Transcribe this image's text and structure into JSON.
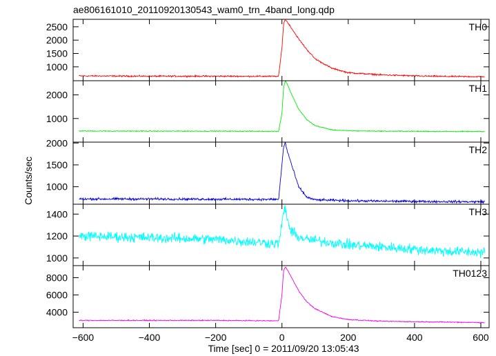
{
  "title": "ae806161010_20110920130543_wam0_trn_4band_long.qdp",
  "xlabel": "Time [sec] 0 = 2011/09/20 13:05:43",
  "ylabel": "Counts/sec",
  "chart_data": [
    {
      "type": "line",
      "panel": "TH0",
      "label": "TH0",
      "color": "#ff0000",
      "xlim": [
        -630,
        625
      ],
      "ylim": [
        480,
        2780
      ],
      "yticks": [
        1000,
        1500,
        2000,
        2500
      ],
      "baseline_before": 660,
      "baseline_after": 620,
      "noise": 22,
      "x": [
        -600,
        -400,
        -200,
        -10,
        0,
        5,
        10,
        15,
        25,
        50,
        75,
        100,
        150,
        200,
        300,
        400,
        500,
        610
      ],
      "y": [
        660,
        650,
        650,
        645,
        1700,
        2600,
        2780,
        2700,
        2520,
        2050,
        1650,
        1300,
        950,
        780,
        700,
        660,
        640,
        630
      ]
    },
    {
      "type": "line",
      "panel": "TH1",
      "label": "TH1",
      "color": "#00ee00",
      "xlim": [
        -630,
        625
      ],
      "ylim": [
        0,
        2600
      ],
      "yticks": [
        1000,
        2000
      ],
      "baseline_before": 470,
      "baseline_after": 450,
      "noise": 15,
      "x": [
        -600,
        -400,
        -200,
        -10,
        0,
        5,
        10,
        15,
        25,
        50,
        75,
        100,
        150,
        200,
        300,
        400,
        500,
        610
      ],
      "y": [
        470,
        465,
        465,
        460,
        1200,
        2300,
        2600,
        2500,
        2150,
        1400,
        950,
        700,
        520,
        480,
        465,
        460,
        455,
        450
      ]
    },
    {
      "type": "line",
      "panel": "TH2",
      "label": "TH2",
      "color": "#0000dd",
      "xlim": [
        -630,
        625
      ],
      "ylim": [
        600,
        2020
      ],
      "yticks": [
        1000,
        1500,
        2000
      ],
      "baseline_before": 720,
      "baseline_after": 660,
      "noise": 22,
      "x": [
        -600,
        -400,
        -200,
        -10,
        0,
        5,
        10,
        15,
        25,
        50,
        75,
        100,
        150,
        200,
        300,
        400,
        500,
        610
      ],
      "y": [
        720,
        720,
        715,
        710,
        1500,
        1900,
        2020,
        1850,
        1600,
        1000,
        760,
        700,
        690,
        680,
        670,
        665,
        660,
        655
      ]
    },
    {
      "type": "line",
      "panel": "TH3",
      "label": "TH3",
      "color": "#00ffff",
      "xlim": [
        -630,
        625
      ],
      "ylim": [
        930,
        1490
      ],
      "yticks": [
        1000,
        1200,
        1400
      ],
      "baseline_before": 1180,
      "baseline_after": 1050,
      "noise": 38,
      "x": [
        -600,
        -400,
        -200,
        -10,
        0,
        5,
        10,
        15,
        25,
        50,
        75,
        100,
        150,
        200,
        300,
        400,
        500,
        610
      ],
      "y": [
        1200,
        1185,
        1170,
        1130,
        1300,
        1420,
        1450,
        1380,
        1250,
        1190,
        1170,
        1160,
        1140,
        1120,
        1100,
        1080,
        1060,
        1050
      ]
    },
    {
      "type": "line",
      "panel": "TH0123",
      "label": "TH0123",
      "color": "#ee00ee",
      "xlim": [
        -630,
        625
      ],
      "ylim": [
        2200,
        9400
      ],
      "yticks": [
        4000,
        6000,
        8000
      ],
      "baseline_before": 3050,
      "baseline_after": 2800,
      "noise": 45,
      "x": [
        -600,
        -400,
        -200,
        -10,
        0,
        5,
        10,
        15,
        25,
        50,
        75,
        100,
        150,
        200,
        300,
        400,
        500,
        610
      ],
      "y": [
        3050,
        3050,
        3050,
        3000,
        6000,
        8800,
        9300,
        9000,
        8300,
        6500,
        5200,
        4400,
        3500,
        3150,
        2950,
        2900,
        2850,
        2800
      ]
    }
  ],
  "xaxis": {
    "xlim": [
      -630,
      625
    ],
    "ticks": [
      -600,
      -400,
      -200,
      0,
      200,
      400,
      600
    ],
    "tick_labels": [
      "−600",
      "−400",
      "−200",
      "0",
      "200",
      "400",
      "600"
    ]
  }
}
